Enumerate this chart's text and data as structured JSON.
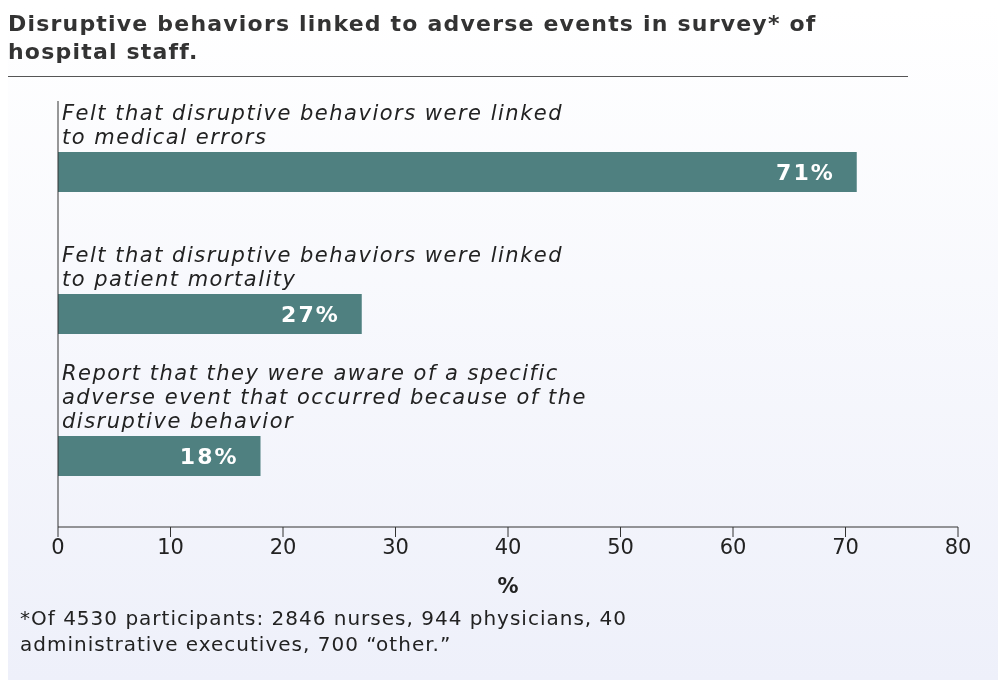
{
  "chart_data": {
    "type": "bar",
    "orientation": "horizontal",
    "title": "Disruptive behaviors linked to adverse events in survey* of hospital staff.",
    "categories": [
      "Felt that disruptive behaviors were linked to medical errors",
      "Felt that disruptive behaviors were linked to patient mortality",
      "Report that they were aware of a specific adverse event that occurred because of the disruptive behavior"
    ],
    "values": [
      71,
      27,
      18
    ],
    "value_labels": [
      "71%",
      "27%",
      "18%"
    ],
    "color": "#4f8080",
    "xlim": [
      0,
      80
    ],
    "xticks": [
      0,
      10,
      20,
      30,
      40,
      50,
      60,
      70,
      80
    ],
    "xlabel": "%",
    "annotations": [
      "*Of 4530 participants: 2846 nurses, 944 physicians, 40 administrative executives, 700 “other.”"
    ]
  }
}
